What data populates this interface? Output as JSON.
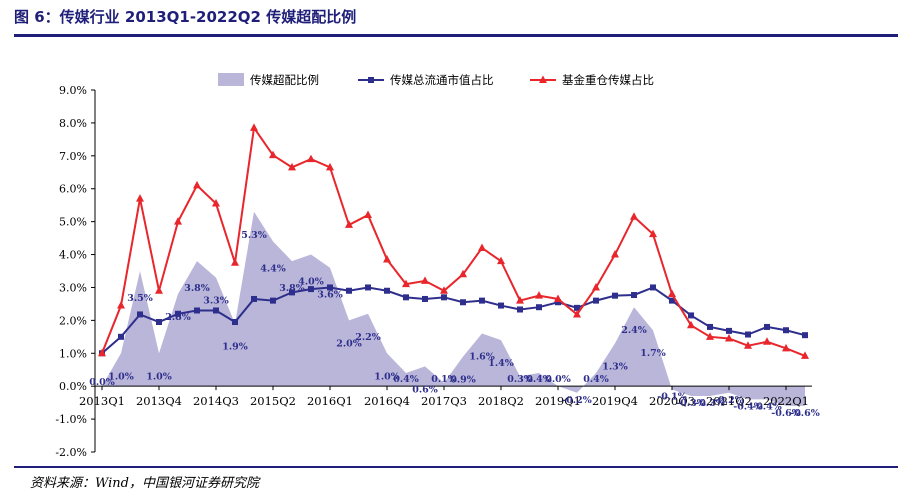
{
  "header": {
    "title": "图 6：传媒行业 2013Q1-2022Q2 传媒超配比例"
  },
  "footer": {
    "source": "资料来源：Wind，中国银河证券研究院"
  },
  "colors": {
    "area": "#b9b6d9",
    "market_line": "#2e2e8c",
    "fund_line": "#e8262b",
    "rule": "#1f1f7a"
  },
  "chart_data": {
    "type": "line",
    "ylim": [
      -2.0,
      9.0
    ],
    "yticks": [
      "-2.0%",
      "-1.0%",
      "0.0%",
      "1.0%",
      "2.0%",
      "3.0%",
      "4.0%",
      "5.0%",
      "6.0%",
      "7.0%",
      "8.0%",
      "9.0%"
    ],
    "xticks": [
      "2013Q1",
      "2013Q4",
      "2014Q3",
      "2015Q2",
      "2016Q1",
      "2016Q4",
      "2017Q3",
      "2018Q2",
      "2019Q1",
      "2019Q4",
      "2020Q3",
      "2021Q2",
      "2022Q1"
    ],
    "legend_position": "top",
    "x": [
      "2013Q1",
      "2013Q2",
      "2013Q3",
      "2013Q4",
      "2014Q1",
      "2014Q2",
      "2014Q3",
      "2014Q4",
      "2015Q1",
      "2015Q2",
      "2015Q3",
      "2015Q4",
      "2016Q1",
      "2016Q2",
      "2016Q3",
      "2016Q4",
      "2017Q1",
      "2017Q2",
      "2017Q3",
      "2017Q4",
      "2018Q1",
      "2018Q2",
      "2018Q3",
      "2018Q4",
      "2019Q1",
      "2019Q2",
      "2019Q3",
      "2019Q4",
      "2020Q1",
      "2020Q2",
      "2020Q3",
      "2020Q4",
      "2021Q1",
      "2021Q2",
      "2021Q3",
      "2021Q4",
      "2022Q1",
      "2022Q2"
    ],
    "series": [
      {
        "name": "传媒超配比例",
        "kind": "area",
        "values": [
          0.0,
          1.0,
          3.5,
          1.0,
          2.8,
          3.8,
          3.3,
          1.9,
          5.3,
          4.4,
          3.8,
          4.0,
          3.6,
          2.0,
          2.2,
          1.0,
          0.4,
          0.6,
          0.1,
          0.9,
          1.6,
          1.4,
          0.3,
          0.4,
          0.0,
          -0.2,
          0.4,
          1.3,
          2.4,
          1.7,
          -0.1,
          -0.3,
          -0.3,
          -0.2,
          -0.4,
          -0.4,
          -0.6,
          -0.6
        ]
      },
      {
        "name": "传媒总流通市值占比",
        "kind": "line",
        "values": [
          1.0,
          1.5,
          2.18,
          1.95,
          2.2,
          2.3,
          2.3,
          1.95,
          2.65,
          2.6,
          2.85,
          2.95,
          3.0,
          2.9,
          3.0,
          2.9,
          2.7,
          2.65,
          2.7,
          2.55,
          2.6,
          2.45,
          2.33,
          2.4,
          2.55,
          2.38,
          2.6,
          2.75,
          2.77,
          3.0,
          2.6,
          2.15,
          1.8,
          1.68,
          1.57,
          1.8,
          1.7,
          1.55
        ]
      },
      {
        "name": "基金重仓传媒占比",
        "kind": "line",
        "values": [
          1.0,
          2.45,
          5.7,
          2.9,
          5.0,
          6.1,
          5.55,
          3.75,
          7.85,
          7.02,
          6.65,
          6.9,
          6.65,
          4.9,
          5.2,
          3.85,
          3.1,
          3.2,
          2.9,
          3.4,
          4.2,
          3.8,
          2.6,
          2.75,
          2.65,
          2.18,
          3.0,
          4.0,
          5.15,
          4.62,
          2.8,
          1.85,
          1.5,
          1.45,
          1.23,
          1.35,
          1.15,
          0.92
        ]
      }
    ],
    "data_labels": [
      "0.0%",
      "1.0%",
      "3.5%",
      "1.0%",
      "2.8%",
      "3.8%",
      "3.3%",
      "1.9%",
      "5.3%",
      "4.4%",
      "3.8%",
      "4.0%",
      "3.6%",
      "2.0%",
      "2.2%",
      "1.0%",
      "0.4%",
      "0.6%",
      "0.1%",
      "0.9%",
      "1.6%",
      "1.4%",
      "0.3%",
      "0.4%",
      "0.0%",
      "-0.2%",
      "0.4%",
      "1.3%",
      "2.4%",
      "1.7%",
      "-0.1%",
      "-0.3%",
      "-0.3%",
      "-0.2%",
      "-0.4%",
      "-0.4%",
      "-0.6%",
      "-0.6%"
    ]
  }
}
